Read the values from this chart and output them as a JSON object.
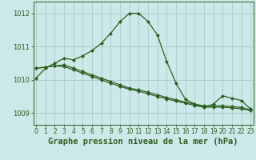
{
  "title": "Graphe pression niveau de la mer (hPa)",
  "xlabel_ticks": [
    "0",
    "1",
    "2",
    "3",
    "4",
    "5",
    "6",
    "7",
    "8",
    "9",
    "10",
    "11",
    "12",
    "13",
    "14",
    "15",
    "16",
    "17",
    "18",
    "19",
    "20",
    "21",
    "22",
    "23"
  ],
  "yticks": [
    1009,
    1010,
    1011,
    1012
  ],
  "ylim": [
    1008.65,
    1012.35
  ],
  "xlim": [
    -0.3,
    23.3
  ],
  "background_color": "#cce8e8",
  "grid_color": "#aacccc",
  "line_color": "#2d6020",
  "s1": [
    1010.05,
    1010.35,
    1010.5,
    1010.65,
    1010.6,
    1010.72,
    1010.88,
    1011.1,
    1011.4,
    1011.75,
    1012.0,
    1012.0,
    1011.75,
    1011.35,
    1010.55,
    1009.9,
    1009.42,
    1009.27,
    1009.17,
    1009.27,
    1009.52,
    1009.45,
    1009.38,
    1009.12
  ],
  "s2": [
    1010.35,
    1010.38,
    1010.42,
    1010.45,
    1010.35,
    1010.25,
    1010.15,
    1010.05,
    1009.95,
    1009.85,
    1009.75,
    1009.7,
    1009.63,
    1009.55,
    1009.47,
    1009.4,
    1009.33,
    1009.27,
    1009.22,
    1009.22,
    1009.22,
    1009.2,
    1009.17,
    1009.1
  ],
  "s3": [
    1010.35,
    1010.38,
    1010.42,
    1010.4,
    1010.3,
    1010.2,
    1010.1,
    1010.0,
    1009.9,
    1009.8,
    1009.72,
    1009.66,
    1009.58,
    1009.5,
    1009.43,
    1009.36,
    1009.3,
    1009.23,
    1009.18,
    1009.18,
    1009.18,
    1009.16,
    1009.13,
    1009.08
  ],
  "title_fontsize": 7.5,
  "tick_fontsize": 6.0,
  "marker": "D",
  "marker_size": 2.0,
  "linewidth": 0.9
}
